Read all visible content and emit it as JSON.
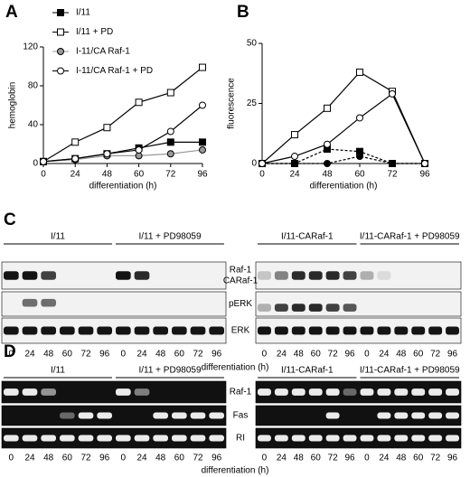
{
  "chart_data": [
    {
      "type": "line",
      "panel": "A",
      "ylabel": "hemoglobin",
      "xlabel": "differentiation (h)",
      "categories": [
        0,
        24,
        48,
        60,
        72,
        96
      ],
      "ylim": [
        0,
        120
      ],
      "yticks": [
        0,
        40,
        80,
        120
      ],
      "legend": "top-left",
      "series": [
        {
          "name": "I/11",
          "color": "#000000",
          "marker": "square",
          "filled": true,
          "line": "solid",
          "values": [
            2,
            5,
            10,
            16,
            22,
            22
          ]
        },
        {
          "name": "I/11 + PD",
          "color": "#000000",
          "marker": "square",
          "filled": false,
          "line": "solid",
          "values": [
            2,
            22,
            37,
            63,
            73,
            99
          ]
        },
        {
          "name": "I-11/CA Raf-1",
          "color": "#999999",
          "marker": "circle",
          "filled": true,
          "line": "solid",
          "values": [
            2,
            4,
            8,
            8,
            10,
            14
          ]
        },
        {
          "name": "I-11/CA Raf-1 + PD",
          "color": "#000000",
          "marker": "circle",
          "filled": false,
          "line": "solid",
          "values": [
            2,
            5,
            10,
            14,
            33,
            60
          ]
        }
      ]
    },
    {
      "type": "line",
      "panel": "B",
      "ylabel": "fluorescence",
      "xlabel": "differentiation (h)",
      "categories": [
        0,
        24,
        48,
        60,
        72,
        96
      ],
      "ylim": [
        0,
        50
      ],
      "yticks": [
        0,
        25,
        50
      ],
      "series": [
        {
          "color": "#000000",
          "marker": "square",
          "filled": true,
          "line": "dashed",
          "values": [
            0,
            0,
            6,
            5,
            0,
            0
          ]
        },
        {
          "color": "#000000",
          "marker": "square",
          "filled": false,
          "line": "solid",
          "values": [
            0,
            12,
            23,
            38,
            30,
            0
          ]
        },
        {
          "color": "#000000",
          "marker": "circle",
          "filled": true,
          "line": "dashed",
          "values": [
            0,
            0,
            0,
            3,
            0,
            0
          ]
        },
        {
          "color": "#000000",
          "marker": "circle",
          "filled": false,
          "line": "solid",
          "values": [
            0,
            3,
            8,
            19,
            29,
            0
          ]
        }
      ]
    }
  ],
  "blots": [
    {
      "panel": "C",
      "xlabel": "differentiation (h)",
      "rows": [
        [
          "Raf-1",
          "CARaf-1"
        ],
        [
          "pERK"
        ],
        [
          "ERK"
        ]
      ],
      "sides": [
        {
          "groups": [
            "I/11",
            "I/11 + PD98059"
          ],
          "lanes": [
            0,
            24,
            48,
            60,
            72,
            96,
            0,
            24,
            48,
            60,
            72,
            96
          ]
        },
        {
          "groups": [
            "I/11-CARaf-1",
            "I/11-CARaf-1 + PD98059"
          ],
          "lanes": [
            0,
            24,
            48,
            60,
            72,
            96,
            0,
            24,
            48,
            60,
            72,
            96
          ]
        }
      ]
    },
    {
      "panel": "D",
      "xlabel": "differentiation (h)",
      "rows": [
        [
          "Raf-1"
        ],
        [
          "Fas"
        ],
        [
          "RI"
        ]
      ],
      "sides": [
        {
          "groups": [
            "I/11",
            "I/11 + PD98059"
          ],
          "lanes": [
            0,
            24,
            48,
            60,
            72,
            96,
            0,
            24,
            48,
            60,
            72,
            96
          ]
        },
        {
          "groups": [
            "I/11-CARaf-1",
            "I/11-CARaf-1 + PD98059"
          ],
          "lanes": [
            0,
            24,
            48,
            60,
            72,
            96,
            0,
            24,
            48,
            60,
            72,
            96
          ]
        }
      ]
    }
  ]
}
